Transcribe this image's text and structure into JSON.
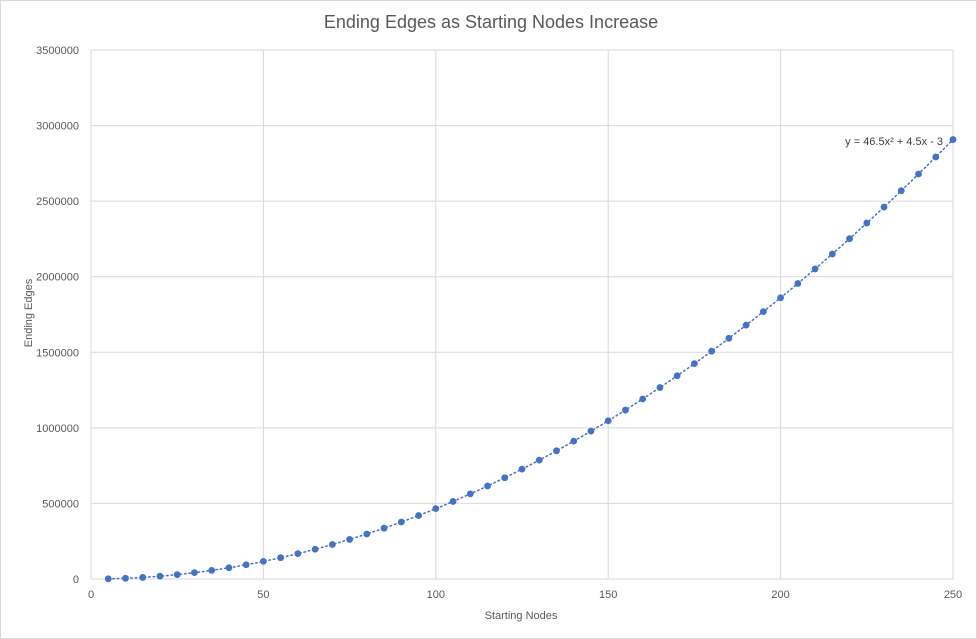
{
  "chart_data": {
    "type": "scatter",
    "title": "Ending Edges as Starting Nodes Increase",
    "xlabel": "Starting Nodes",
    "ylabel": "Ending Edges",
    "xlim": [
      0,
      250
    ],
    "ylim": [
      0,
      3500000
    ],
    "x_ticks": [
      0,
      50,
      100,
      150,
      200,
      250
    ],
    "y_ticks": [
      0,
      500000,
      1000000,
      1500000,
      2000000,
      2500000,
      3000000,
      3500000
    ],
    "grid": true,
    "legend": "none",
    "series": [
      {
        "color": "#4472C4",
        "x": [
          5,
          10,
          15,
          20,
          25,
          30,
          35,
          40,
          45,
          50,
          55,
          60,
          65,
          70,
          75,
          80,
          85,
          90,
          95,
          100,
          105,
          110,
          115,
          120,
          125,
          130,
          135,
          140,
          145,
          150,
          155,
          160,
          165,
          170,
          175,
          180,
          185,
          190,
          195,
          200,
          205,
          210,
          215,
          220,
          225,
          230,
          235,
          240,
          245,
          250
        ],
        "y": [
          1184,
          4692,
          10527,
          18687,
          29172,
          41982,
          57117,
          74577,
          94362,
          116472,
          140907,
          167667,
          196752,
          228162,
          261897,
          297957,
          336342,
          377052,
          420087,
          465447,
          513132,
          563142,
          615477,
          670137,
          727122,
          786432,
          848067,
          912027,
          978312,
          1046922,
          1117857,
          1191117,
          1266702,
          1344612,
          1424847,
          1507407,
          1592292,
          1679502,
          1769037,
          1860897,
          1955082,
          2051592,
          2150427,
          2251587,
          2355072,
          2460882,
          2569017,
          2679477,
          2792262,
          2907372
        ]
      }
    ],
    "trendline": {
      "type": "polynomial",
      "order": 2,
      "coefficients": [
        46.5,
        4.5,
        -3
      ],
      "style": "dotted",
      "color": "#4472C4",
      "equation_label": "y = 46.5x² + 4.5x - 3"
    }
  }
}
